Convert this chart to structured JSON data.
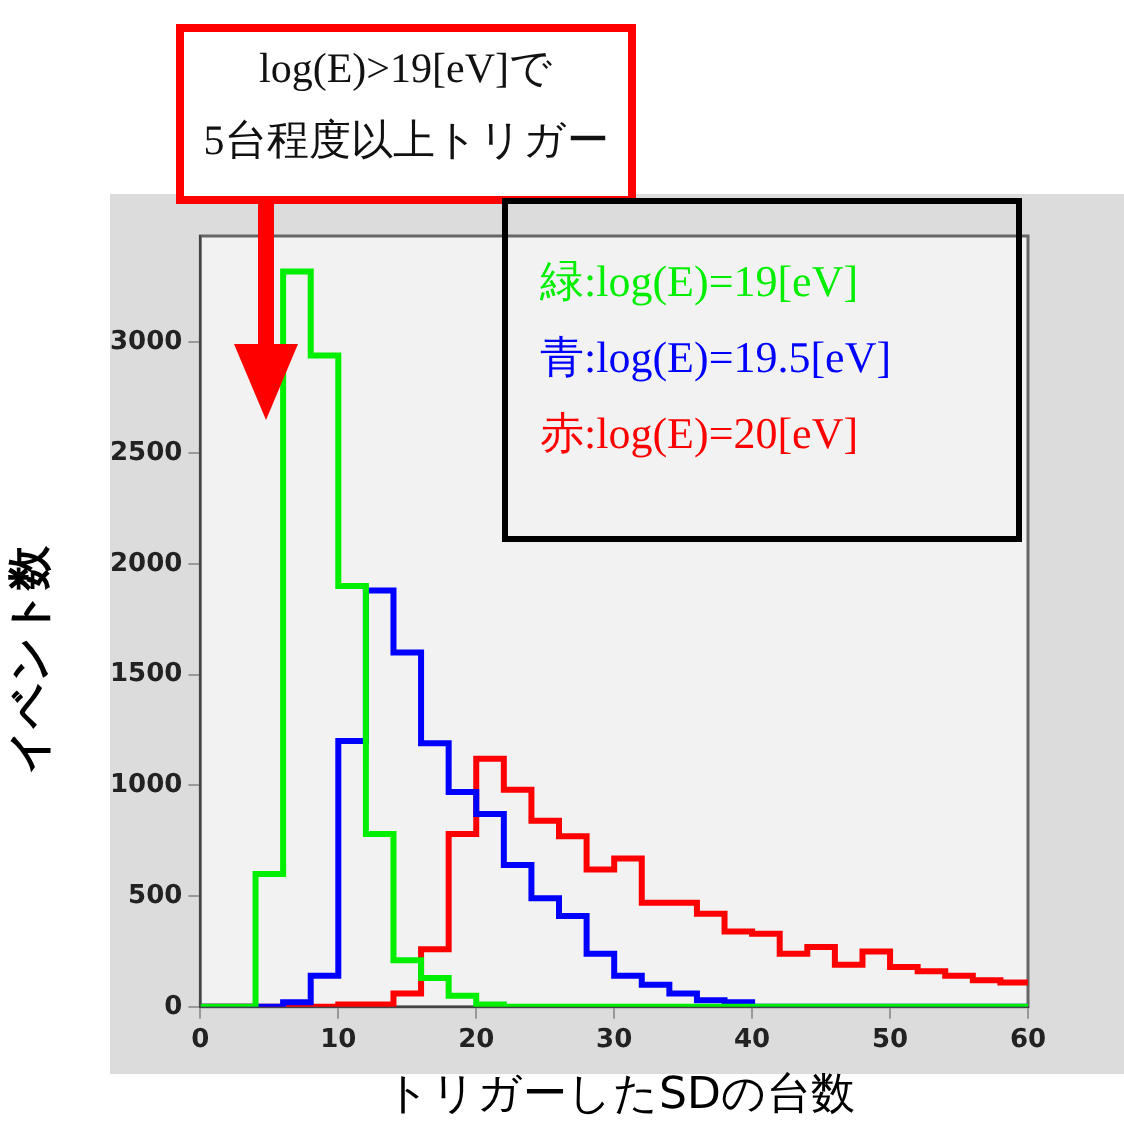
{
  "chart_data": {
    "type": "histogram",
    "xlabel": "トリガーしたSDの台数",
    "ylabel": "イベント数",
    "annotations": [
      "log(E)>19[eV]で\n5台程度以上トリガー"
    ],
    "bins": [
      0,
      2,
      4,
      6,
      8,
      10,
      12,
      14,
      16,
      18,
      20,
      22,
      24,
      26,
      28,
      30,
      32,
      34,
      36,
      38,
      40,
      42,
      44,
      46,
      48,
      50,
      52,
      54,
      56,
      58,
      60
    ],
    "series": [
      {
        "name": "緑:log(E)=19[eV]",
        "color": "#00ee00",
        "values": [
          0,
          0,
          600,
          3320,
          2940,
          1900,
          780,
          210,
          130,
          50,
          10,
          0,
          0,
          0,
          0,
          0,
          0,
          0,
          0,
          0,
          0,
          0,
          0,
          0,
          0,
          0,
          0,
          0,
          0,
          0
        ]
      },
      {
        "name": "青:log(E)=19.5[eV]",
        "color": "#0000ff",
        "values": [
          0,
          0,
          0,
          20,
          140,
          1200,
          1880,
          1600,
          1190,
          970,
          870,
          640,
          490,
          410,
          240,
          140,
          100,
          60,
          30,
          20,
          0,
          0,
          0,
          0,
          0,
          0,
          0,
          0,
          0,
          0
        ]
      },
      {
        "name": "赤:log(E)=20[eV]",
        "color": "#ff0000",
        "values": [
          0,
          0,
          0,
          0,
          0,
          10,
          10,
          60,
          260,
          780,
          1120,
          980,
          840,
          770,
          620,
          670,
          470,
          470,
          420,
          340,
          330,
          240,
          270,
          190,
          250,
          180,
          160,
          140,
          120,
          110
        ]
      }
    ],
    "xlim": [
      0,
      60
    ],
    "xticks": [
      0,
      10,
      20,
      30,
      40,
      50,
      60
    ],
    "ylim": [
      0,
      3480
    ],
    "yticks": [
      0,
      500,
      1000,
      1500,
      2000,
      2500,
      3000
    ],
    "grid": false,
    "legend": "top right"
  }
}
